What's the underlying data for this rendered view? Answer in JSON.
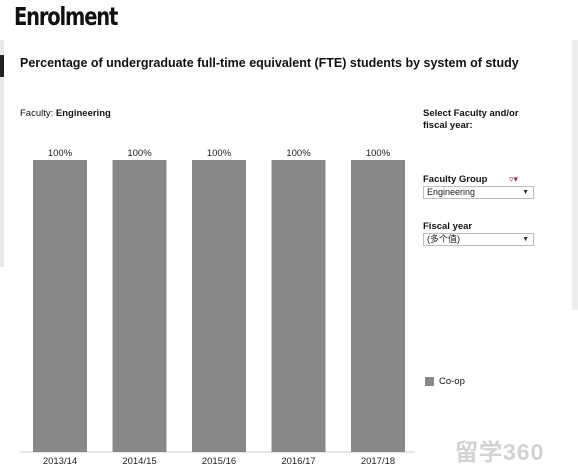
{
  "page": {
    "heading": "Enrolment"
  },
  "chart": {
    "title": "Percentage of undergraduate full-time equivalent (FTE) students by system of study",
    "filter_label": "Faculty:",
    "filter_value": "Engineering"
  },
  "controls": {
    "heading": "Select Faculty and/or fiscal year:",
    "faculty_group_label": "Faculty Group",
    "faculty_group_value": "Engineering",
    "fiscal_year_label": "Fiscal year",
    "fiscal_year_value": "(多个值)",
    "filter_icon": "filter-icon"
  },
  "legend": {
    "items": [
      {
        "label": "Co-op",
        "color": "#888888"
      }
    ]
  },
  "watermark": "留学360",
  "chart_data": {
    "type": "bar",
    "title": "Percentage of undergraduate full-time equivalent (FTE) students by system of study",
    "categories": [
      "2013/14",
      "2014/15",
      "2015/16",
      "2016/17",
      "2017/18"
    ],
    "series": [
      {
        "name": "Co-op",
        "values": [
          100,
          100,
          100,
          100,
          100
        ],
        "color": "#888888"
      }
    ],
    "data_labels": [
      "100%",
      "100%",
      "100%",
      "100%",
      "100%"
    ],
    "ylim": [
      0,
      100
    ],
    "xlabel": "",
    "ylabel": "",
    "grid": false,
    "legend_position": "right"
  }
}
